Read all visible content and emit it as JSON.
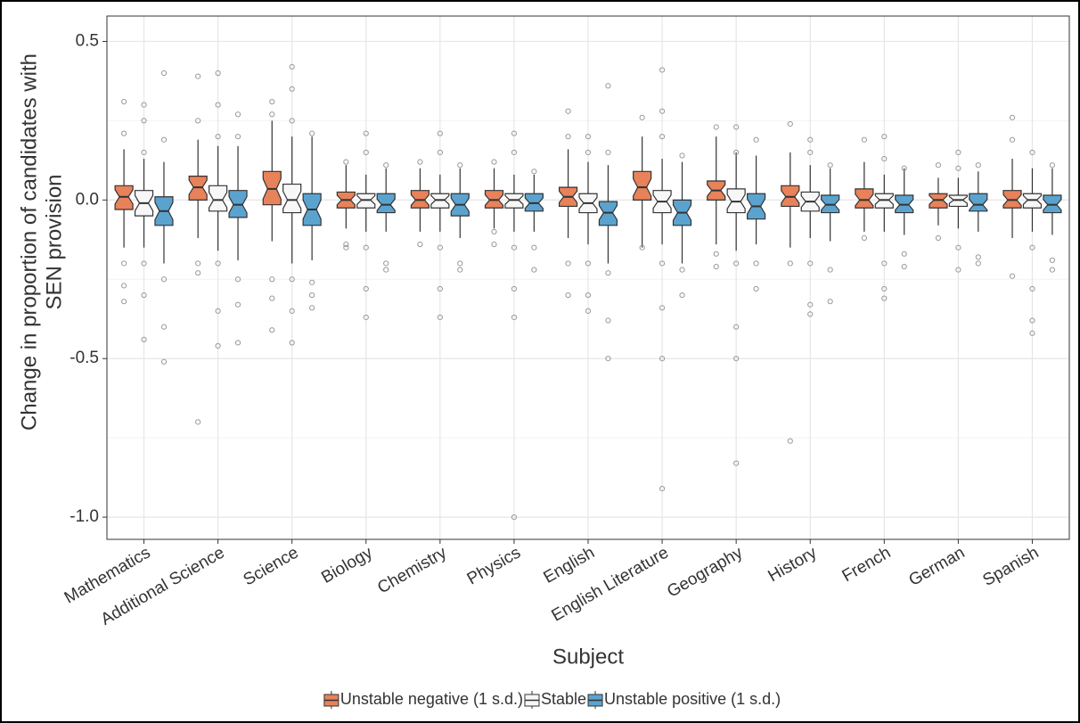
{
  "chart_data": {
    "type": "boxplot",
    "xlabel": "Subject",
    "ylabel": [
      "Change in proportion of candidates with",
      "SEN provision"
    ],
    "categories": [
      "Mathematics",
      "Additional Science",
      "Science",
      "Biology",
      "Chemistry",
      "Physics",
      "English",
      "English Literature",
      "Geography",
      "History",
      "French",
      "German",
      "Spanish"
    ],
    "ylim": [
      -1.07,
      0.58
    ],
    "yticks": [
      0.5,
      {
        "value": 0,
        "label": "0.0"
      },
      -0.5,
      {
        "value": -1,
        "label": "-1.0"
      }
    ],
    "grid": true,
    "notch": true,
    "legend": "bottom",
    "series": [
      {
        "name": "Unstable negative (1 s.d.)",
        "color": "#e8825a",
        "stats": [
          [
            -0.15,
            -0.03,
            0.01,
            0.045,
            0.16
          ],
          [
            -0.12,
            0,
            0.04,
            0.075,
            0.19
          ],
          [
            -0.13,
            -0.015,
            0.035,
            0.09,
            0.25
          ],
          [
            -0.09,
            -0.025,
            0,
            0.025,
            0.11
          ],
          [
            -0.1,
            -0.025,
            0,
            0.03,
            0.1
          ],
          [
            -0.09,
            -0.025,
            0,
            0.03,
            0.1
          ],
          [
            -0.12,
            -0.02,
            0.01,
            0.04,
            0.16
          ],
          [
            -0.15,
            0,
            0.04,
            0.09,
            0.2
          ],
          [
            -0.14,
            0,
            0.03,
            0.06,
            0.2
          ],
          [
            -0.15,
            -0.02,
            0.01,
            0.045,
            0.15
          ],
          [
            -0.1,
            -0.025,
            0,
            0.035,
            0.12
          ],
          [
            -0.08,
            -0.025,
            0,
            0.02,
            0.07
          ],
          [
            -0.12,
            -0.025,
            0,
            0.03,
            0.13
          ]
        ],
        "outliers": [
          [
            0.31,
            0.21,
            -0.2,
            -0.27,
            -0.32
          ],
          [
            0.39,
            0.25,
            -0.2,
            -0.23,
            -0.7
          ],
          [
            0.31,
            0.27,
            -0.25,
            -0.31,
            -0.41
          ],
          [
            0.12,
            -0.14,
            -0.15
          ],
          [
            0.12,
            -0.14
          ],
          [
            0.12,
            -0.1,
            -0.14
          ],
          [
            0.28,
            0.2,
            -0.2,
            -0.3
          ],
          [
            0.26,
            -0.15
          ],
          [
            0.23,
            -0.17,
            -0.21
          ],
          [
            0.24,
            -0.2,
            -0.76
          ],
          [
            0.19,
            -0.12
          ],
          [
            0.11,
            -0.12
          ],
          [
            0.26,
            0.19,
            -0.24
          ]
        ]
      },
      {
        "name": "Stable",
        "color": "#f7f7f7",
        "stats": [
          [
            -0.15,
            -0.05,
            -0.01,
            0.03,
            0.13
          ],
          [
            -0.16,
            -0.035,
            0,
            0.045,
            0.17
          ],
          [
            -0.2,
            -0.04,
            0,
            0.05,
            0.2
          ],
          [
            -0.1,
            -0.025,
            0,
            0.02,
            0.08
          ],
          [
            -0.1,
            -0.025,
            0,
            0.02,
            0.08
          ],
          [
            -0.1,
            -0.025,
            0,
            0.02,
            0.08
          ],
          [
            -0.14,
            -0.04,
            -0.01,
            0.02,
            0.12
          ],
          [
            -0.14,
            -0.04,
            -0.005,
            0.03,
            0.13
          ],
          [
            -0.16,
            -0.04,
            -0.005,
            0.035,
            0.15
          ],
          [
            -0.12,
            -0.035,
            -0.005,
            0.025,
            0.11
          ],
          [
            -0.1,
            -0.025,
            0,
            0.02,
            0.08
          ],
          [
            -0.09,
            -0.02,
            0,
            0.015,
            0.07
          ],
          [
            -0.1,
            -0.025,
            0,
            0.02,
            0.1
          ]
        ],
        "outliers": [
          [
            0.3,
            0.25,
            0.15,
            -0.2,
            -0.3,
            -0.44
          ],
          [
            0.4,
            0.3,
            0.2,
            -0.2,
            -0.35,
            -0.46
          ],
          [
            0.42,
            0.35,
            0.25,
            -0.25,
            -0.35,
            -0.45
          ],
          [
            0.21,
            0.15,
            -0.15,
            -0.28,
            -0.37
          ],
          [
            0.21,
            0.15,
            -0.15,
            -0.28,
            -0.37
          ],
          [
            0.21,
            0.15,
            -0.15,
            -0.28,
            -0.37,
            -1
          ],
          [
            0.2,
            0.15,
            -0.2,
            -0.3,
            -0.35
          ],
          [
            0.41,
            0.28,
            0.2,
            -0.2,
            -0.34,
            -0.5,
            -0.91
          ],
          [
            0.23,
            0.15,
            -0.2,
            -0.4,
            -0.5,
            -0.83
          ],
          [
            0.19,
            0.15,
            -0.2,
            -0.33,
            -0.36
          ],
          [
            0.2,
            0.13,
            -0.2,
            -0.28,
            -0.31
          ],
          [
            0.15,
            0.1,
            -0.15,
            -0.22
          ],
          [
            0.15,
            -0.15,
            -0.28,
            -0.38,
            -0.42
          ]
        ]
      },
      {
        "name": "Unstable positive (1 s.d.)",
        "color": "#5ba3cf",
        "stats": [
          [
            -0.2,
            -0.08,
            -0.035,
            0.01,
            0.12
          ],
          [
            -0.19,
            -0.055,
            -0.015,
            0.03,
            0.17
          ],
          [
            -0.19,
            -0.08,
            -0.03,
            0.02,
            0.2
          ],
          [
            -0.1,
            -0.04,
            -0.015,
            0.02,
            0.1
          ],
          [
            -0.12,
            -0.05,
            -0.015,
            0.02,
            0.1
          ],
          [
            -0.1,
            -0.035,
            -0.01,
            0.02,
            0.08
          ],
          [
            -0.2,
            -0.08,
            -0.04,
            -0.005,
            0.11
          ],
          [
            -0.2,
            -0.08,
            -0.04,
            0,
            0.12
          ],
          [
            -0.14,
            -0.06,
            -0.02,
            0.02,
            0.14
          ],
          [
            -0.13,
            -0.04,
            -0.015,
            0.015,
            0.1
          ],
          [
            -0.11,
            -0.04,
            -0.015,
            0.015,
            0.1
          ],
          [
            -0.1,
            -0.035,
            -0.015,
            0.02,
            0.09
          ],
          [
            -0.11,
            -0.04,
            -0.015,
            0.015,
            0.1
          ]
        ],
        "outliers": [
          [
            0.4,
            0.19,
            -0.25,
            -0.4,
            -0.51
          ],
          [
            0.27,
            0.2,
            -0.25,
            -0.33,
            -0.45
          ],
          [
            0.21,
            -0.26,
            -0.3,
            -0.34
          ],
          [
            0.11,
            -0.2,
            -0.22
          ],
          [
            0.11,
            -0.2,
            -0.22
          ],
          [
            0.09,
            -0.15,
            -0.22
          ],
          [
            0.36,
            0.15,
            -0.23,
            -0.38,
            -0.5
          ],
          [
            0.14,
            -0.22,
            -0.3
          ],
          [
            0.19,
            -0.2,
            -0.28
          ],
          [
            0.11,
            -0.22,
            -0.32
          ],
          [
            0.1,
            -0.17,
            -0.21
          ],
          [
            0.11,
            -0.18,
            -0.2
          ],
          [
            0.11,
            -0.19,
            -0.22
          ]
        ]
      }
    ]
  }
}
